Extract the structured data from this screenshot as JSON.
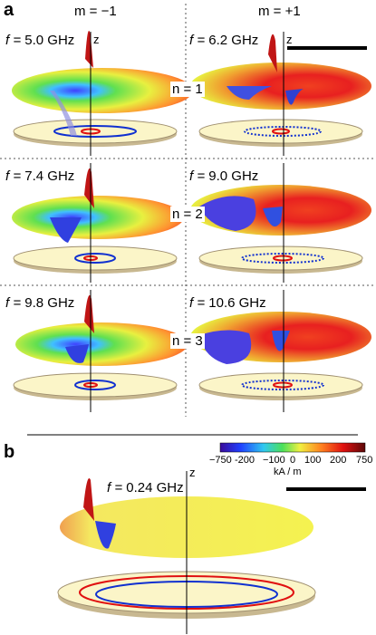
{
  "panel_a": {
    "letter": "a",
    "col_left": "m = −1",
    "col_right": "m = +1",
    "rows": [
      {
        "n_label": "n = 1",
        "left_freq_value": "5.0 GHz",
        "right_freq_value": "6.2 GHz"
      },
      {
        "n_label": "n = 2",
        "left_freq_value": "7.4 GHz",
        "right_freq_value": "9.0 GHz"
      },
      {
        "n_label": "n = 3",
        "left_freq_value": "9.8 GHz",
        "right_freq_value": "10.6 GHz"
      }
    ],
    "freq_symbol": "f = ",
    "axis_label": "z"
  },
  "panel_b": {
    "letter": "b",
    "freq_symbol": "f = ",
    "freq_value": "0.24 GHz",
    "axis_label": "z"
  },
  "colorbar": {
    "ticks": [
      "−750",
      "-200",
      "−100",
      "0",
      "100",
      "200",
      "750"
    ],
    "unit": "kA / m",
    "colors": [
      "#3a0a9a",
      "#2040ff",
      "#30c8f0",
      "#4be05a",
      "#f0f040",
      "#ff8020",
      "#e01010",
      "#5a0808"
    ]
  }
}
